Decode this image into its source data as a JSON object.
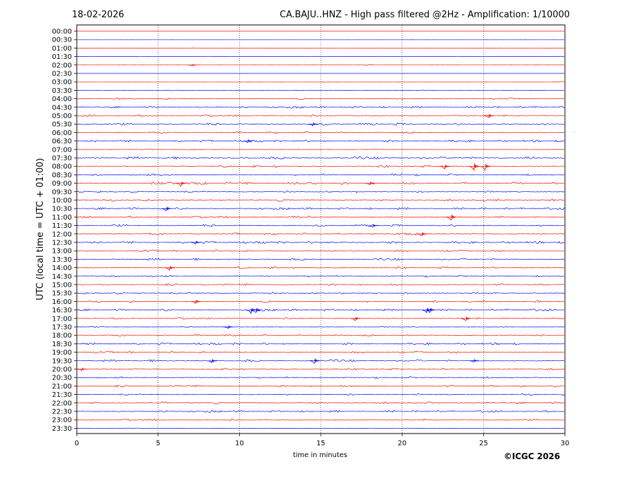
{
  "header": {
    "date": "18-02-2026",
    "title": "CA.BAJU..HNZ - High pass filtered @2Hz - Amplification: 1/10000"
  },
  "footer": {
    "copyright": "©ICGC 2026"
  },
  "chart_data": {
    "type": "line",
    "title": "CA.BAJU..HNZ - High pass filtered @2Hz - Amplification: 1/10000",
    "xlabel": "time in minutes",
    "ylabel": "UTC (local time = UTC + 01:00)",
    "xlim": [
      0,
      30
    ],
    "x_ticks": [
      0,
      5,
      10,
      15,
      20,
      25,
      30
    ],
    "grid": "vertical dotted lines at 5, 10, 15, 20, 25",
    "trace_colors": [
      "#ff0000",
      "#0000ff"
    ],
    "rows": [
      "00:00",
      "00:30",
      "01:00",
      "01:30",
      "02:00",
      "02:30",
      "03:00",
      "03:30",
      "04:00",
      "04:30",
      "05:00",
      "05:30",
      "06:00",
      "06:30",
      "07:00",
      "07:30",
      "08:00",
      "08:30",
      "09:00",
      "09:30",
      "10:00",
      "10:30",
      "11:00",
      "11:30",
      "12:00",
      "12:30",
      "13:00",
      "13:30",
      "14:00",
      "14:30",
      "15:00",
      "15:30",
      "16:00",
      "16:30",
      "17:00",
      "17:30",
      "18:00",
      "18:30",
      "19:00",
      "19:30",
      "20:00",
      "20:30",
      "21:00",
      "21:30",
      "22:00",
      "22:30",
      "23:00",
      "23:30"
    ],
    "row_activity": [
      0.02,
      0.02,
      0.02,
      0.02,
      0.02,
      0.02,
      0.02,
      0.08,
      0.25,
      0.3,
      0.3,
      0.35,
      0.3,
      0.35,
      0.12,
      0.4,
      0.4,
      0.35,
      0.4,
      0.35,
      0.35,
      0.35,
      0.35,
      0.35,
      0.35,
      0.35,
      0.35,
      0.35,
      0.35,
      0.3,
      0.3,
      0.35,
      0.35,
      0.35,
      0.3,
      0.12,
      0.3,
      0.35,
      0.35,
      0.35,
      0.3,
      0.3,
      0.3,
      0.3,
      0.3,
      0.3,
      0.3,
      0.02
    ],
    "events": [
      {
        "row": "02:00",
        "minute": 7.1,
        "amp": 2
      },
      {
        "row": "05:00",
        "minute": 25.3,
        "amp": 4
      },
      {
        "row": "05:30",
        "minute": 14.5,
        "amp": 3
      },
      {
        "row": "06:30",
        "minute": 10.5,
        "amp": 3
      },
      {
        "row": "08:00",
        "minute": 22.6,
        "amp": 5
      },
      {
        "row": "08:00",
        "minute": 24.4,
        "amp": 8
      },
      {
        "row": "08:00",
        "minute": 25.1,
        "amp": 7
      },
      {
        "row": "09:00",
        "minute": 6.4,
        "amp": 5
      },
      {
        "row": "09:00",
        "minute": 18.0,
        "amp": 3
      },
      {
        "row": "10:30",
        "minute": 5.5,
        "amp": 5
      },
      {
        "row": "11:00",
        "minute": 23.0,
        "amp": 7
      },
      {
        "row": "11:30",
        "minute": 18.2,
        "amp": 3
      },
      {
        "row": "12:00",
        "minute": 21.2,
        "amp": 4
      },
      {
        "row": "12:30",
        "minute": 7.3,
        "amp": 3
      },
      {
        "row": "14:00",
        "minute": 5.7,
        "amp": 5
      },
      {
        "row": "16:00",
        "minute": 7.3,
        "amp": 4
      },
      {
        "row": "16:30",
        "minute": 10.7,
        "amp": 6
      },
      {
        "row": "16:30",
        "minute": 11.0,
        "amp": 6
      },
      {
        "row": "16:30",
        "minute": 21.5,
        "amp": 6
      },
      {
        "row": "16:30",
        "minute": 21.7,
        "amp": 5
      },
      {
        "row": "17:00",
        "minute": 17.1,
        "amp": 4
      },
      {
        "row": "17:00",
        "minute": 23.9,
        "amp": 5
      },
      {
        "row": "17:30",
        "minute": 9.3,
        "amp": 3
      },
      {
        "row": "19:30",
        "minute": 8.3,
        "amp": 4
      },
      {
        "row": "19:30",
        "minute": 14.6,
        "amp": 6
      },
      {
        "row": "19:30",
        "minute": 24.4,
        "amp": 3
      },
      {
        "row": "20:00",
        "minute": 0.3,
        "amp": 3
      }
    ]
  }
}
